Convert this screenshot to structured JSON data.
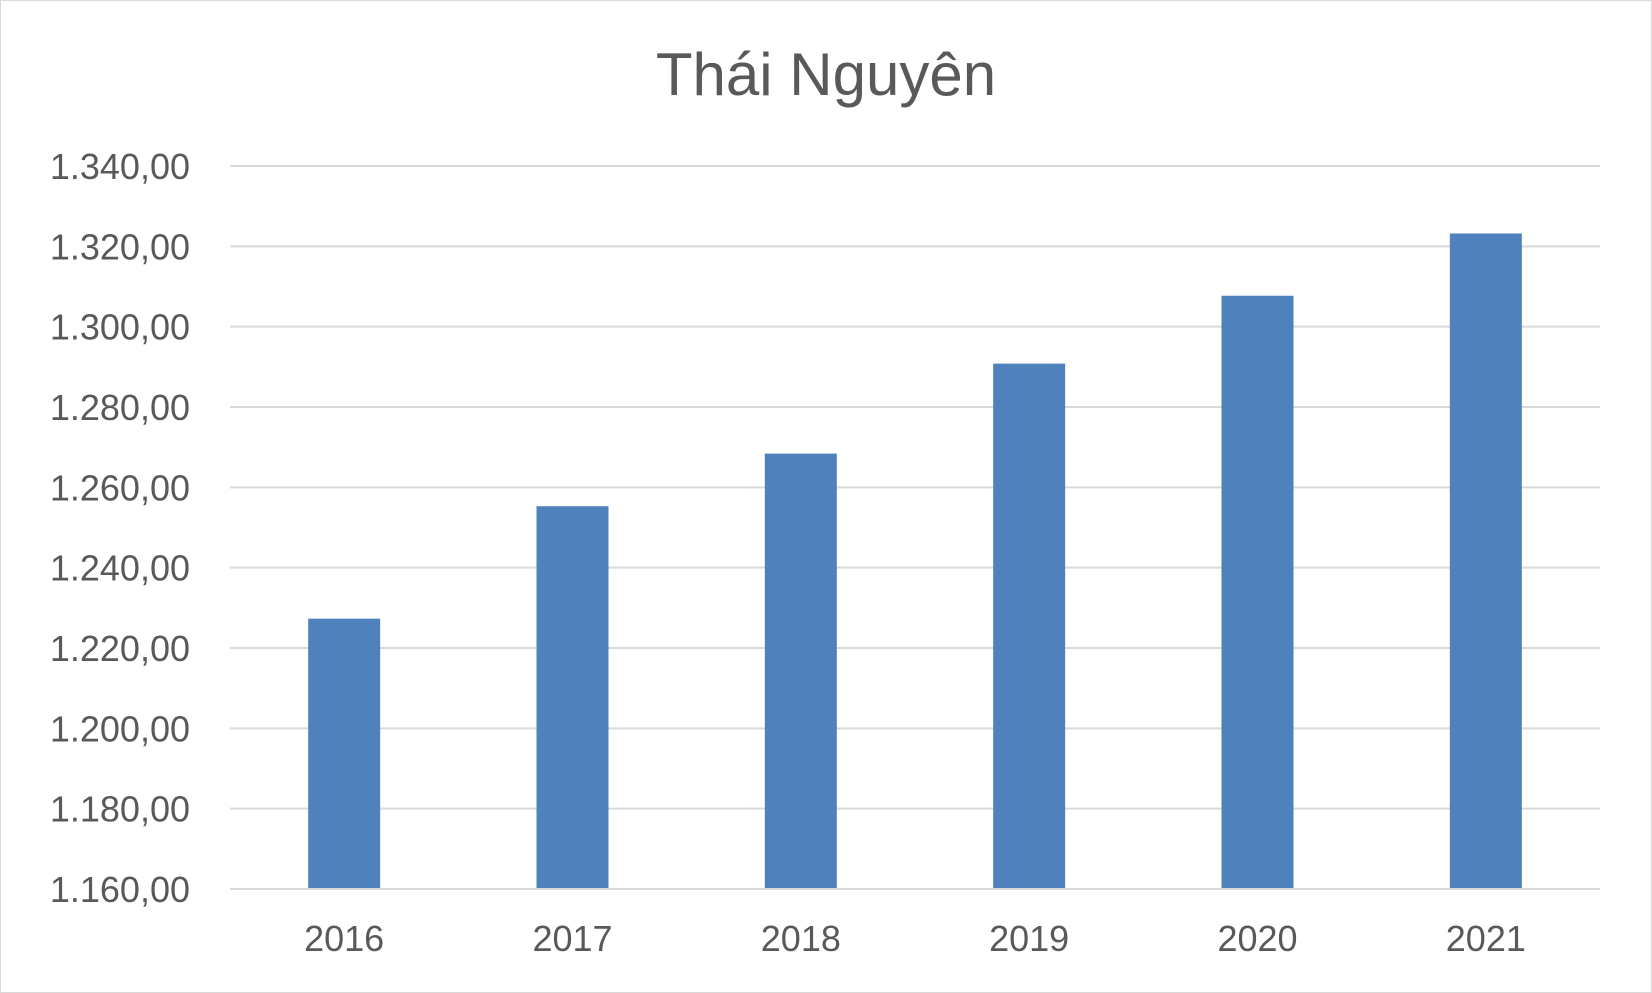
{
  "chart_data": {
    "type": "bar",
    "title": "Thái Nguyên",
    "categories": [
      "2016",
      "2017",
      "2018",
      "2019",
      "2020",
      "2021"
    ],
    "series": [
      {
        "values": [
          1227.3,
          1255.3,
          1268.4,
          1290.8,
          1307.7,
          1323.2
        ],
        "color": "#4f81bd"
      }
    ],
    "xlabel": "",
    "ylabel": "",
    "ylim": [
      1160,
      1340
    ],
    "ytick_step": 20,
    "ytick_labels": [
      "1.160,00",
      "1.180,00",
      "1.200,00",
      "1.220,00",
      "1.240,00",
      "1.260,00",
      "1.280,00",
      "1.300,00",
      "1.320,00",
      "1.340,00"
    ],
    "grid": true,
    "legend": "none"
  }
}
